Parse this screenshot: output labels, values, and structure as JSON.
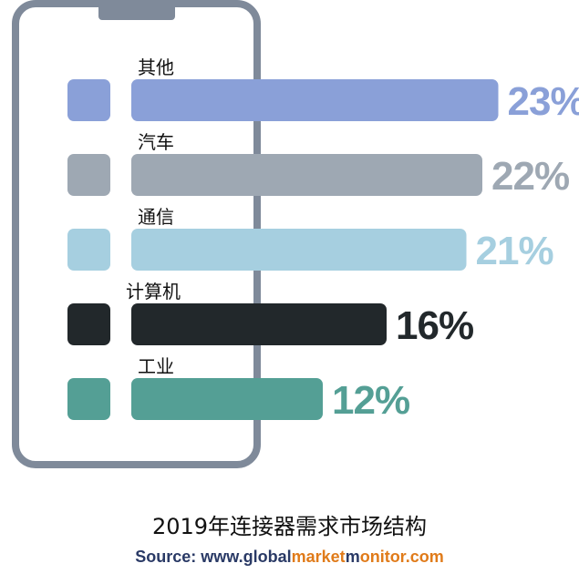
{
  "chart_data": {
    "type": "bar",
    "orientation": "horizontal",
    "categories": [
      "其他",
      "汽车",
      "通信",
      "计算机",
      "工业"
    ],
    "values": [
      23,
      22,
      21,
      16,
      12
    ],
    "value_labels": [
      "23%",
      "22%",
      "21%",
      "16%",
      "12%"
    ],
    "colors": [
      "#8aa0d8",
      "#9ea8b3",
      "#a6cfe0",
      "#22282b",
      "#549f95"
    ],
    "title": "2019年连接器需求市场结构",
    "xlabel": "",
    "ylabel": "",
    "grid": false
  },
  "source": {
    "prefix": "Source: www.",
    "part1": "global",
    "part2": "market",
    "part3": "m",
    "part4": "onitor.com"
  }
}
